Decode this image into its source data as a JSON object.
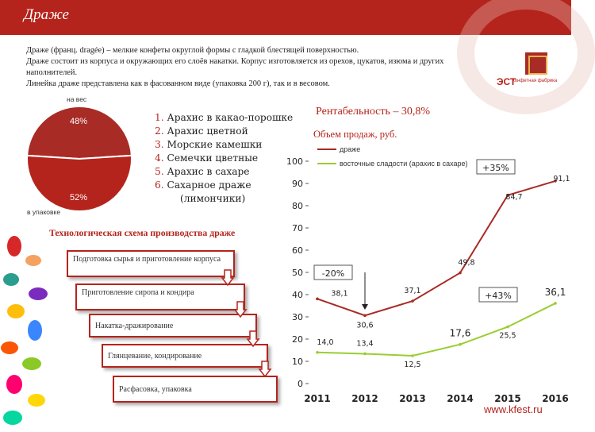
{
  "header": {
    "title": "Драже"
  },
  "description": [
    "Драже (франц. dragée) – мелкие конфеты округлой формы с гладкой блестящей поверхностью.",
    "Драже состоит из корпуса и окружающих его слоёв накатки. Корпус изготовляется из орехов, цукатов, изюма и других наполнителей.",
    "Линейка драже представлена как в фасованном виде (упаковка 200 г), так и в весовом."
  ],
  "logo": {
    "mark": "ЭСТ",
    "text": "конфетная фабрика"
  },
  "pie": {
    "slices": [
      {
        "label": "на вес",
        "percent": 48,
        "value_label": "48%",
        "color": "#a82b26"
      },
      {
        "label": "в упаковке",
        "percent": 52,
        "value_label": "52%",
        "color": "#b5241c"
      }
    ],
    "top_label": "на вес",
    "bottom_label": "в упаковке",
    "pct_top": "48%",
    "pct_bottom": "52%"
  },
  "assortment": [
    {
      "num": "1.",
      "text": "Арахис в какао-порошке"
    },
    {
      "num": "2.",
      "text": "Арахис цветной"
    },
    {
      "num": "3.",
      "text": "Морские камешки"
    },
    {
      "num": "4.",
      "text": "Семечки цветные"
    },
    {
      "num": "5.",
      "text": "Арахис в сахаре"
    },
    {
      "num": "6.",
      "text": "Сахарное драже"
    }
  ],
  "assortment_sub": "(лимончики)",
  "flow": {
    "title": "Технологическая схема производства драже",
    "steps": [
      "Подготовка сырья и приготовление корпуса",
      "Приготовление сиропа и кондира",
      "Накатка-дражирование",
      "Глянцевание, кондирование",
      "Расфасовка, упаковка"
    ]
  },
  "profitability": "Рентабельность – 30,8%",
  "chart_title": "Объем продаж, руб.",
  "badges": {
    "b1": "+35%",
    "b2": "-20%",
    "b3": "+43%"
  },
  "site": "www.kfest.ru",
  "chart_data": {
    "type": "line",
    "title": "Объем продаж, руб.",
    "categories": [
      "2011",
      "2012",
      "2013",
      "2014",
      "2015",
      "2016"
    ],
    "ylim": [
      0,
      100
    ],
    "yticks": [
      0,
      10,
      20,
      30,
      40,
      50,
      60,
      70,
      80,
      90,
      100
    ],
    "legend": "top",
    "series": [
      {
        "name": "драже",
        "color": "#a82b26",
        "values": [
          38.1,
          30.6,
          37.1,
          49.8,
          84.7,
          91.1
        ],
        "labels": [
          "38,1",
          "30,6",
          "37,1",
          "49,8",
          "84,7",
          "91,1"
        ]
      },
      {
        "name": "восточные сладости (арахис в сахаре)",
        "color": "#9acd32",
        "values": [
          14.0,
          13.4,
          12.5,
          17.6,
          25.5,
          36.1
        ],
        "labels": [
          "14,0",
          "13,4",
          "12,5",
          "17,6",
          "25,5",
          "36,1"
        ]
      }
    ]
  }
}
